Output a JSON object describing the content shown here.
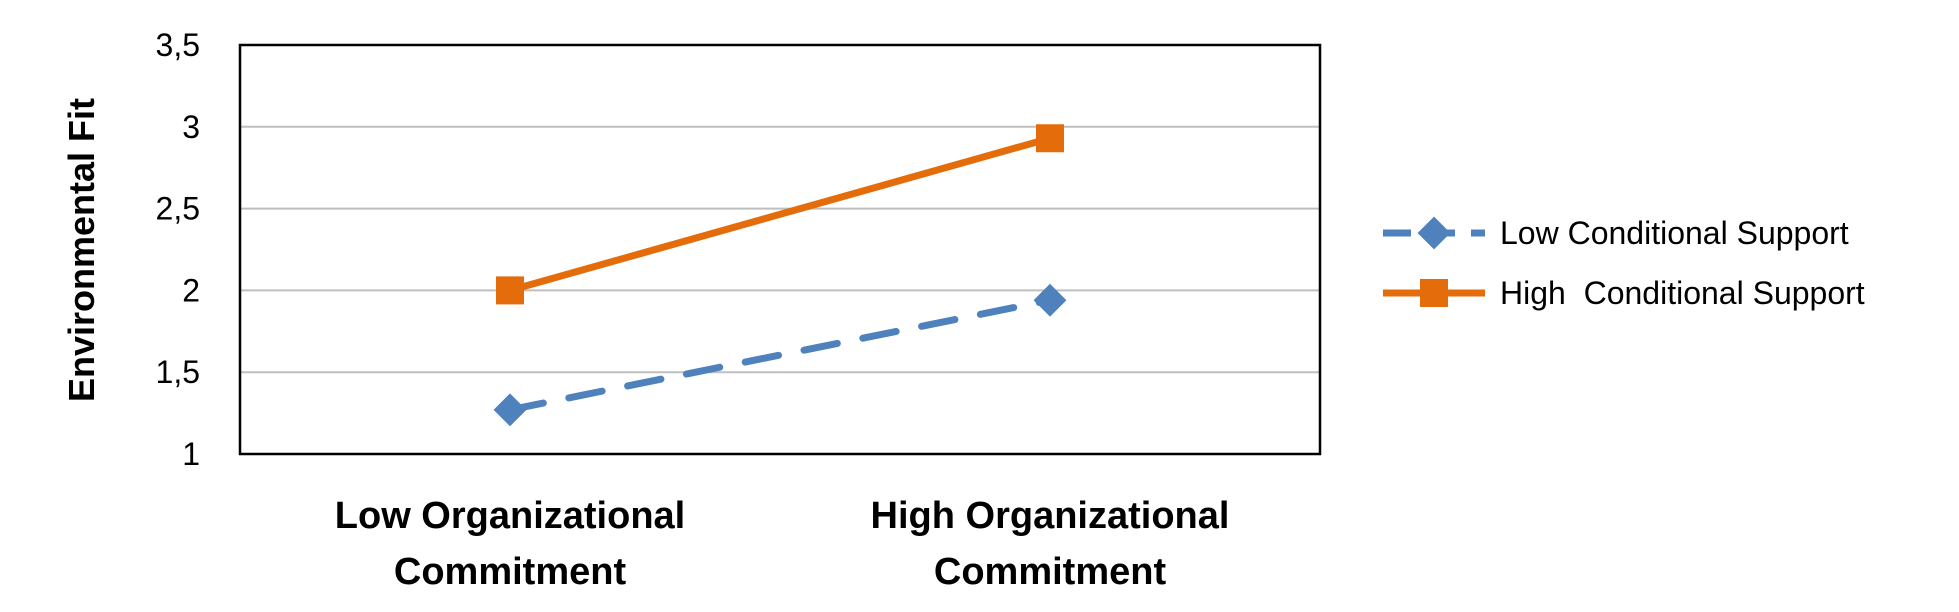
{
  "chart_data": {
    "type": "line",
    "title": "",
    "xlabel": "",
    "ylabel": "Environmental Fit",
    "categories": [
      [
        "Low Organizational",
        "Commitment"
      ],
      [
        "High Organizational",
        "Commitment"
      ]
    ],
    "ylim": [
      1,
      3.5
    ],
    "yticks": [
      "1",
      "1,5",
      "2",
      "2,5",
      "3",
      "3,5"
    ],
    "ytick_values": [
      1,
      1.5,
      2,
      2.5,
      3,
      3.5
    ],
    "grid": true,
    "legend_position": "right",
    "series": [
      {
        "name": "Low Conditional Support",
        "values": [
          1.27,
          1.94
        ],
        "color": "#4f81bd",
        "line_style": "dashed",
        "marker": "diamond"
      },
      {
        "name": "High  Conditional Support",
        "values": [
          2.0,
          2.93
        ],
        "color": "#e46c0a",
        "line_style": "solid",
        "marker": "square"
      }
    ]
  }
}
